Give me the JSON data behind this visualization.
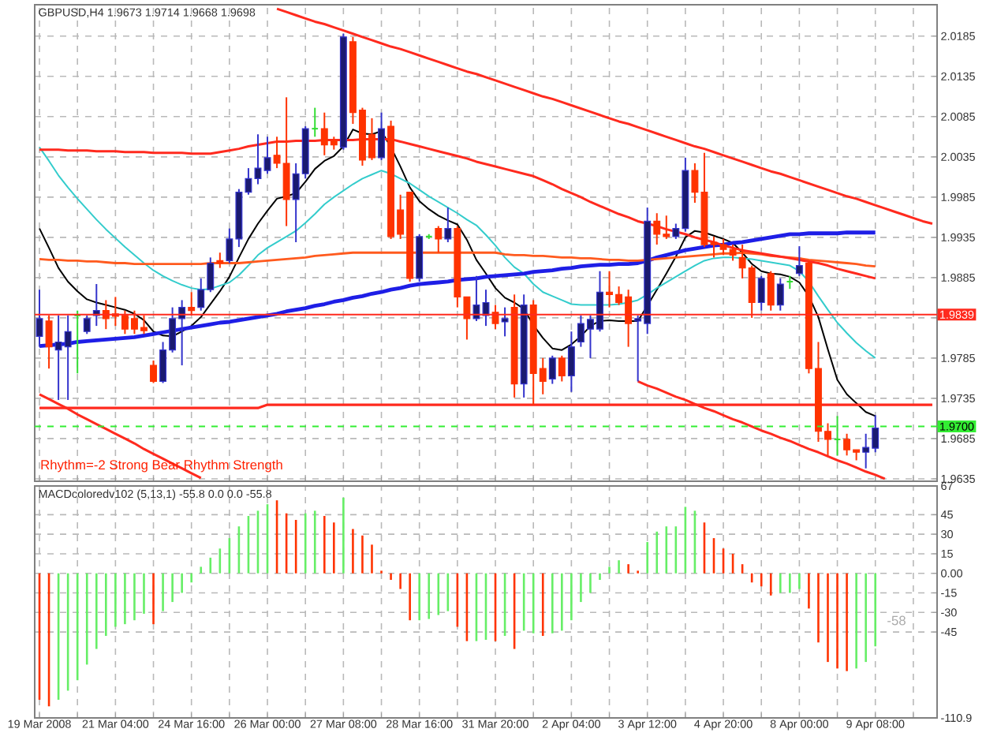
{
  "chart_data": [
    {
      "type": "candlestick",
      "title": "GBPUSD,H4  1.9673 1.9714 1.9668 1.9698",
      "categories": [
        null,
        null,
        null,
        null,
        null,
        null,
        null,
        null,
        null,
        null,
        null,
        null,
        null,
        null,
        null,
        null,
        null,
        null,
        null,
        null,
        null,
        null,
        null,
        null,
        null,
        null,
        null,
        null,
        null,
        null,
        null,
        null,
        null,
        null,
        null,
        null,
        null,
        null,
        null,
        null,
        null,
        null,
        null,
        null,
        null,
        null,
        null,
        null,
        null,
        null,
        null,
        null,
        null,
        null,
        null,
        null,
        null,
        null,
        null,
        null,
        null,
        null,
        null,
        null,
        null,
        null,
        null,
        null,
        null,
        null,
        null,
        null,
        null,
        null,
        null,
        null,
        null,
        null,
        null,
        null,
        null,
        null,
        null,
        null,
        null,
        null,
        null,
        null,
        null,
        null,
        null,
        null,
        null,
        null,
        null
      ],
      "ohlc": [
        [
          1.9812,
          1.987,
          1.9799,
          1.9834
        ],
        [
          1.9831,
          1.9838,
          1.9772,
          1.9799
        ],
        [
          1.9795,
          1.9838,
          1.9733,
          1.9805
        ],
        [
          1.9799,
          1.9838,
          1.9733,
          1.9818
        ],
        [
          1.9838,
          1.9844,
          1.9766,
          1.9838
        ],
        [
          1.9818,
          1.9838,
          1.9815,
          1.9834
        ],
        [
          1.9838,
          1.9877,
          1.9825,
          1.9844
        ],
        [
          1.9844,
          1.9857,
          1.9821,
          1.9834
        ],
        [
          1.984,
          1.9861,
          1.9825,
          1.9837
        ],
        [
          1.9838,
          1.9844,
          1.9815,
          1.9821
        ],
        [
          1.9834,
          1.9844,
          1.9815,
          1.9821
        ],
        [
          1.9823,
          1.9838,
          1.9815,
          1.9819
        ],
        [
          1.9776,
          1.9782,
          1.9754,
          1.9756
        ],
        [
          1.9756,
          1.9805,
          1.9754,
          1.9795
        ],
        [
          1.9795,
          1.9848,
          1.9792,
          1.9834
        ],
        [
          1.9834,
          1.9857,
          1.9776,
          1.9848
        ],
        [
          1.9848,
          1.9867,
          1.9838,
          1.9844
        ],
        [
          1.9848,
          1.9884,
          1.9844,
          1.987
        ],
        [
          1.987,
          1.991,
          1.9867,
          1.9903
        ],
        [
          1.9906,
          1.9916,
          1.9897,
          1.9903
        ],
        [
          1.9906,
          1.9946,
          1.9903,
          1.9933
        ],
        [
          1.9933,
          1.9995,
          1.9923,
          1.9991
        ],
        [
          1.9991,
          2.0021,
          1.9988,
          2.0008
        ],
        [
          2.0008,
          2.0063,
          2.0001,
          2.0021
        ],
        [
          2.0018,
          2.006,
          2.0014,
          2.0034
        ],
        [
          2.0037,
          2.006,
          2.0021,
          2.0027
        ],
        [
          2.0027,
          2.0109,
          1.9949,
          1.9982
        ],
        [
          1.9982,
          2.0027,
          1.9929,
          2.0014
        ],
        [
          2.0014,
          2.0073,
          2.0008,
          2.007
        ],
        [
          2.007,
          2.0096,
          2.006,
          2.007
        ],
        [
          2.007,
          2.009,
          2.0037,
          2.005
        ],
        [
          2.0055,
          2.006,
          2.0044,
          2.005
        ],
        [
          2.0047,
          2.0188,
          2.0044,
          2.0184
        ],
        [
          2.0178,
          2.0184,
          2.0076,
          2.009
        ],
        [
          2.0093,
          2.0096,
          2.0024,
          2.0031
        ],
        [
          2.0063,
          2.0083,
          2.0031,
          2.0034
        ],
        [
          2.0034,
          2.009,
          2.0031,
          2.007
        ],
        [
          2.0073,
          2.008,
          1.9933,
          1.9936
        ],
        [
          1.9969,
          1.9988,
          1.9933,
          1.9939
        ],
        [
          1.9991,
          1.9991,
          1.988,
          1.9884
        ],
        [
          1.9884,
          1.9939,
          1.988,
          1.9936
        ],
        [
          1.9936,
          1.9939,
          1.9933,
          1.9936
        ],
        [
          1.9946,
          1.9949,
          1.9916,
          1.9933
        ],
        [
          1.9933,
          1.9972,
          1.9929,
          1.9946
        ],
        [
          1.9946,
          1.9949,
          1.9848,
          1.9861
        ],
        [
          1.9861,
          1.9861,
          1.9808,
          1.9834
        ],
        [
          1.9834,
          1.9887,
          1.9831,
          1.9851
        ],
        [
          1.9838,
          1.987,
          1.9825,
          1.9854
        ],
        [
          1.9842,
          1.9851,
          1.9821,
          1.9828
        ],
        [
          1.983,
          1.9848,
          1.9812,
          1.9834
        ],
        [
          1.9848,
          1.9864,
          1.9736,
          1.9753
        ],
        [
          1.9753,
          1.9864,
          1.9736,
          1.9851
        ],
        [
          1.9851,
          1.9857,
          1.9727,
          1.9766
        ],
        [
          1.9772,
          1.9785,
          1.974,
          1.9756
        ],
        [
          1.9759,
          1.9788,
          1.9753,
          1.9785
        ],
        [
          1.9785,
          1.9788,
          1.9756,
          1.9763
        ],
        [
          1.9763,
          1.9818,
          1.9743,
          1.9799
        ],
        [
          1.9805,
          1.9838,
          1.9799,
          1.9828
        ],
        [
          1.9821,
          1.9838,
          1.9785,
          1.9833
        ],
        [
          1.9821,
          1.9893,
          1.9818,
          1.9867
        ],
        [
          1.9867,
          1.9893,
          1.9848,
          1.9864
        ],
        [
          1.9864,
          1.9874,
          1.9851,
          1.9854
        ],
        [
          1.9861,
          1.987,
          1.9799,
          1.9828
        ],
        [
          1.9831,
          1.9838,
          1.9756,
          1.9834
        ],
        [
          1.9828,
          1.9972,
          1.9815,
          1.9955
        ],
        [
          1.9955,
          1.9965,
          1.9926,
          1.9939
        ],
        [
          1.9939,
          1.9962,
          1.9933,
          1.9936
        ],
        [
          1.9936,
          1.9952,
          1.9933,
          1.9946
        ],
        [
          1.9946,
          2.0034,
          1.9942,
          2.0018
        ],
        [
          2.0018,
          2.0027,
          1.9978,
          1.9991
        ],
        [
          1.9991,
          2.004,
          1.9923,
          1.9926
        ],
        [
          1.9929,
          1.9936,
          1.991,
          1.9926
        ],
        [
          1.9926,
          1.9933,
          1.9913,
          1.992
        ],
        [
          1.992,
          1.9926,
          1.9906,
          1.9913
        ],
        [
          1.991,
          1.9926,
          1.9884,
          1.9897
        ],
        [
          1.9897,
          1.99,
          1.9835,
          1.9854
        ],
        [
          1.9854,
          1.9887,
          1.9844,
          1.9884
        ],
        [
          1.989,
          1.9893,
          1.9844,
          1.9851
        ],
        [
          1.9851,
          1.9884,
          1.9844,
          1.9877
        ],
        [
          1.988,
          1.9887,
          1.9871,
          1.988
        ],
        [
          1.989,
          1.9924,
          1.9887,
          1.99
        ],
        [
          1.9903,
          1.9906,
          1.9766,
          1.9772
        ],
        [
          1.9772,
          1.9805,
          1.9681,
          1.9694
        ],
        [
          1.9694,
          1.9704,
          1.9664,
          1.9684
        ],
        [
          1.9684,
          1.9713,
          1.9664,
          1.9684
        ],
        [
          1.9684,
          1.9691,
          1.9664,
          1.9671
        ],
        [
          1.9671,
          1.9671,
          1.9658,
          1.9668
        ],
        [
          1.9668,
          1.9691,
          1.9648,
          1.9674
        ],
        [
          1.9673,
          1.9714,
          1.9668,
          1.9698
        ],
        null,
        null,
        null,
        null,
        null,
        null
      ],
      "series": [
        {
          "type": "line",
          "color": "#000000",
          "values": [
            1.9946,
            1.9922,
            1.9897,
            1.988,
            1.9868,
            1.9858,
            1.9854,
            1.9851,
            1.9848,
            1.9845,
            1.984,
            1.9832,
            1.9818,
            1.9813,
            1.9812,
            1.9818,
            1.9825,
            1.9836,
            1.9852,
            1.9868,
            1.9886,
            1.991,
            1.9933,
            1.9952,
            1.9968,
            1.9983,
            1.9986,
            1.999,
            2.0004,
            2.002,
            2.003,
            2.0036,
            2.0048,
            2.0069,
            2.0064,
            2.0063,
            2.0067,
            2.0047,
            2.0023,
            1.9997,
            1.998,
            1.997,
            1.9962,
            1.9956,
            1.9951,
            1.9932,
            1.9907,
            1.989,
            1.9872,
            1.986,
            1.9854,
            1.9846,
            1.9826,
            1.981,
            1.9797,
            1.9795,
            1.9802,
            1.9812,
            1.9825,
            1.9831,
            1.9832,
            1.9831,
            1.9831,
            1.9831,
            1.985,
            1.987,
            1.989,
            1.9911,
            1.9935,
            1.9943,
            1.9941,
            1.9937,
            1.9933,
            1.9928,
            1.9916,
            1.9902,
            1.9893,
            1.989,
            1.9889,
            1.9886,
            1.9879,
            1.9862,
            1.9836,
            1.9796,
            1.9758,
            1.974,
            1.9729,
            1.9718,
            1.9713,
            null,
            null,
            null,
            null,
            null,
            null
          ]
        },
        {
          "type": "line",
          "color": "#33cccc",
          "values": [
            2.0047,
            2.003,
            2.0012,
            1.9997,
            1.9983,
            1.997,
            1.9957,
            1.9945,
            1.9934,
            1.9923,
            1.9913,
            1.9903,
            1.9894,
            1.9887,
            1.9881,
            1.9876,
            1.9872,
            1.987,
            1.9871,
            1.9875,
            1.9879,
            1.9888,
            1.99,
            1.9913,
            1.9922,
            1.9929,
            1.9936,
            1.9943,
            1.9953,
            1.9964,
            1.9976,
            1.9985,
            1.9993,
            2.0001,
            2.0008,
            2.0013,
            2.0018,
            2.0014,
            2.0008,
            2.0002,
            1.9994,
            1.9986,
            1.9979,
            1.9972,
            1.9965,
            1.9957,
            1.995,
            1.9938,
            1.9925,
            1.991,
            1.9898,
            1.989,
            1.9877,
            1.9867,
            1.9862,
            1.9857,
            1.9852,
            1.9851,
            1.9851,
            1.9851,
            1.9851,
            1.9852,
            1.9854,
            1.9857,
            1.9864,
            1.9872,
            1.9879,
            1.9886,
            1.9893,
            1.99,
            1.9906,
            1.9909,
            1.991,
            1.991,
            1.9909,
            1.9908,
            1.9906,
            1.9904,
            1.9902,
            1.99,
            1.9893,
            1.988,
            1.9862,
            1.9845,
            1.9829,
            1.9816,
            1.9804,
            1.9794,
            1.9785,
            null,
            null,
            null,
            null,
            null,
            null
          ]
        },
        {
          "type": "line",
          "color": "#1e1ee6",
          "values": [
            1.98,
            1.9801,
            1.9802,
            1.9803,
            1.9805,
            1.9806,
            1.9807,
            1.9808,
            1.9809,
            1.981,
            1.9811,
            1.9813,
            1.9815,
            1.9817,
            1.9819,
            1.9821,
            1.9823,
            1.9825,
            1.9827,
            1.9829,
            1.983,
            1.9832,
            1.9834,
            1.9836,
            1.9838,
            1.984,
            1.9843,
            1.9845,
            1.9847,
            1.985,
            1.9852,
            1.9855,
            1.9857,
            1.986,
            1.9862,
            1.9865,
            1.9867,
            1.987,
            1.9872,
            1.9875,
            1.9877,
            1.9878,
            1.9879,
            1.988,
            1.9882,
            1.9883,
            1.9884,
            1.9886,
            1.9887,
            1.9888,
            1.9889,
            1.989,
            1.9892,
            1.9893,
            1.9894,
            1.9896,
            1.9897,
            1.9899,
            1.99,
            1.9901,
            1.9901,
            1.9902,
            1.9902,
            1.9903,
            1.9906,
            1.991,
            1.9913,
            1.9916,
            1.9919,
            1.9921,
            1.9923,
            1.9925,
            1.9926,
            1.9928,
            1.9929,
            1.9931,
            1.9933,
            1.9935,
            1.9937,
            1.9939,
            1.9939,
            1.994,
            1.994,
            1.994,
            1.994,
            1.9941,
            1.9941,
            1.9941,
            1.9941,
            null,
            null,
            null,
            null,
            null,
            null
          ]
        },
        {
          "type": "line",
          "color": "#ff5a1e",
          "values": [
            1.9908,
            1.9907,
            1.9907,
            1.9906,
            1.9906,
            1.9905,
            1.9905,
            1.9904,
            1.9903,
            1.9903,
            1.9902,
            1.9902,
            1.9902,
            1.9902,
            1.9902,
            1.9902,
            1.9902,
            1.9902,
            1.9903,
            1.9903,
            1.9903,
            1.9903,
            1.9904,
            1.9905,
            1.9906,
            1.9907,
            1.9908,
            1.9909,
            1.991,
            1.9912,
            1.9913,
            1.9914,
            1.9915,
            1.9916,
            1.9916,
            1.9916,
            1.9916,
            1.9916,
            1.9916,
            1.9916,
            1.9916,
            1.9916,
            1.9916,
            1.9916,
            1.9916,
            1.9916,
            1.9916,
            1.9916,
            1.9916,
            1.9914,
            1.9913,
            1.9913,
            1.9912,
            1.9912,
            1.9911,
            1.991,
            1.991,
            1.9909,
            1.9909,
            1.9908,
            1.9907,
            1.9907,
            1.9906,
            1.9906,
            1.9907,
            1.9908,
            1.9909,
            1.991,
            1.9911,
            1.9912,
            1.9913,
            1.9914,
            1.9915,
            1.9915,
            1.9916,
            1.9915,
            1.9914,
            1.9912,
            1.9911,
            1.991,
            1.9909,
            1.9907,
            1.9906,
            1.9905,
            1.9904,
            1.9903,
            1.9902,
            1.99,
            1.9899,
            null,
            null,
            null,
            null,
            null,
            null
          ]
        },
        {
          "type": "line",
          "color": "#ff2a1e",
          "values": [
            2.0044,
            2.0044,
            2.0044,
            2.0043,
            2.0043,
            2.0043,
            2.0042,
            2.0042,
            2.0042,
            2.0041,
            2.0041,
            2.0041,
            2.004,
            2.004,
            2.004,
            2.004,
            2.0039,
            2.0039,
            2.0039,
            2.0041,
            2.0043,
            2.0045,
            2.0048,
            2.005,
            2.0052,
            2.0054,
            2.0054,
            2.0055,
            2.0055,
            2.0055,
            2.0056,
            2.0056,
            2.0056,
            2.0056,
            2.0057,
            2.0057,
            2.0057,
            2.0057,
            2.0054,
            2.0051,
            2.0048,
            2.0045,
            2.0042,
            2.0039,
            2.0036,
            2.0033,
            2.0029,
            2.0026,
            2.0023,
            2.002,
            2.0017,
            2.0014,
            2.0011,
            2.0006,
            2.0001,
            1.9995,
            1.999,
            1.9985,
            1.9979,
            1.9974,
            1.9969,
            1.9964,
            1.996,
            1.9955,
            1.9952,
            1.9949,
            1.9945,
            1.9942,
            1.9939,
            1.9935,
            1.9932,
            1.9929,
            1.9925,
            1.9922,
            1.9919,
            1.9917,
            1.9915,
            1.9913,
            1.9911,
            1.9909,
            1.9907,
            1.9905,
            1.9903,
            1.99,
            1.9896,
            1.9893,
            1.989,
            1.9887,
            1.9884,
            null,
            null,
            null,
            null,
            null,
            null
          ]
        },
        {
          "type": "line",
          "color": "#ff2a1e",
          "values": [
            1.9723,
            1.9723,
            1.9723,
            1.9723,
            1.9723,
            1.9723,
            1.9723,
            1.9723,
            1.9723,
            1.9723,
            1.9723,
            1.9723,
            1.9723,
            1.9723,
            1.9723,
            1.9723,
            1.9723,
            1.9723,
            1.9723,
            1.9723,
            1.9723,
            1.9723,
            1.9723,
            1.9723,
            1.9727,
            1.9727,
            1.9727,
            1.9727,
            1.9727,
            1.9727,
            1.9727,
            1.9727,
            1.9727,
            1.9727,
            1.9727,
            1.9727,
            1.9727,
            1.9727,
            1.9727,
            1.9727,
            1.9727,
            1.9727,
            1.9727,
            1.9727,
            1.9727,
            1.9727,
            1.9727,
            1.9727,
            1.9727,
            1.9727,
            1.9727,
            1.9727,
            1.9727,
            1.9727,
            1.9727,
            1.9727,
            1.9727,
            1.9727,
            1.9727,
            1.9727,
            1.9727,
            1.9727,
            1.9727,
            1.9727,
            1.9727,
            1.9727,
            1.9727,
            1.9727,
            1.9727,
            1.9727,
            1.9727,
            1.9727,
            1.9727,
            1.9727,
            1.9727,
            1.9727,
            1.9727,
            1.9727,
            1.9727,
            1.9727,
            1.9727,
            1.9727,
            1.9727,
            1.9727,
            1.9727,
            1.9727,
            1.9727,
            1.9727,
            1.9727,
            1.9727,
            1.9727,
            1.9727,
            1.9727,
            1.9727,
            1.9727
          ]
        },
        {
          "type": "line",
          "color": "#ff2a1e",
          "values": [
            null,
            null,
            null,
            null,
            null,
            null,
            null,
            null,
            null,
            null,
            null,
            null,
            null,
            null,
            null,
            null,
            null,
            null,
            null,
            null,
            null,
            null,
            null,
            null,
            null,
            2.0219,
            2.0215,
            2.0211,
            2.0207,
            2.0203,
            2.02,
            2.0196,
            2.0192,
            2.0188,
            2.0184,
            2.018,
            2.0176,
            2.0172,
            2.0169,
            2.0165,
            2.0161,
            2.0157,
            2.0153,
            2.0149,
            2.0145,
            2.0141,
            2.0138,
            2.0134,
            2.013,
            2.0126,
            2.0122,
            2.0118,
            2.0114,
            2.011,
            2.0107,
            2.0103,
            2.0099,
            2.0095,
            2.0091,
            2.0087,
            2.0083,
            2.0079,
            2.0076,
            2.0072,
            2.0068,
            2.0064,
            2.006,
            2.0056,
            2.0052,
            2.0048,
            2.0045,
            2.0041,
            2.0037,
            2.0033,
            2.0029,
            2.0025,
            2.0021,
            2.0017,
            2.0014,
            2.001,
            2.0006,
            2.0002,
            1.9998,
            1.9994,
            1.999,
            1.9986,
            1.9983,
            1.9979,
            1.9975,
            1.9971,
            1.9967,
            1.9963,
            1.9959,
            1.9955,
            1.9952
          ]
        },
        {
          "type": "line",
          "color": "#ff2a1e",
          "values": [
            1.974,
            1.9734,
            1.9728,
            1.9722,
            1.9715,
            1.9709,
            1.9703,
            1.9697,
            1.9691,
            1.9685,
            1.9679,
            1.9672,
            1.9666,
            1.966,
            1.9654,
            1.9648,
            1.9642,
            1.9636,
            null,
            null,
            null,
            null,
            null,
            null,
            null,
            null,
            null,
            null,
            null,
            null,
            null,
            null,
            null,
            null,
            null,
            null,
            null,
            null,
            null,
            null,
            null,
            null,
            null,
            null,
            null,
            null,
            null,
            null,
            null,
            null,
            null,
            null,
            null,
            null,
            null,
            null,
            null,
            null,
            null,
            null,
            null,
            null,
            null,
            null,
            null,
            null,
            null,
            null,
            null,
            null,
            null,
            null,
            null,
            null,
            null,
            null,
            null,
            null,
            null,
            null,
            null,
            null,
            null,
            null,
            null,
            null,
            null,
            null,
            null,
            null,
            null,
            null,
            null,
            null,
            null
          ]
        },
        {
          "type": "line",
          "color": "#ff2a1e",
          "values": [
            null,
            null,
            null,
            null,
            null,
            null,
            null,
            null,
            null,
            null,
            null,
            null,
            null,
            null,
            null,
            null,
            null,
            null,
            null,
            null,
            null,
            null,
            null,
            null,
            null,
            null,
            null,
            null,
            null,
            null,
            null,
            null,
            null,
            null,
            null,
            null,
            null,
            null,
            null,
            null,
            null,
            null,
            null,
            null,
            null,
            null,
            null,
            null,
            null,
            null,
            null,
            null,
            null,
            null,
            null,
            null,
            null,
            null,
            null,
            null,
            null,
            null,
            null,
            1.9756,
            1.9751,
            1.9747,
            1.9742,
            1.9737,
            1.9733,
            1.9728,
            1.9723,
            1.9719,
            1.9714,
            1.9709,
            1.9705,
            1.97,
            1.9695,
            1.9691,
            1.9686,
            1.9682,
            1.9677,
            1.9672,
            1.9668,
            1.9663,
            1.9658,
            1.9654,
            1.9649,
            1.9644,
            1.964,
            1.9635,
            null,
            null,
            null,
            null,
            null
          ]
        }
      ],
      "ref_lines": [
        {
          "axis": "y",
          "value": 1.9839,
          "label": "1.9839",
          "color": "#ff2a1e"
        },
        {
          "axis": "y",
          "value": 1.97,
          "label": "1.9700",
          "color": "#33ee33",
          "line_style": "dashed"
        }
      ],
      "annotations": [
        "Rhythm=-2 Strong Bear Rhythm Strength"
      ],
      "ylim": [
        1.9632,
        2.0224
      ],
      "yticks": [
        1.9635,
        1.9685,
        1.9735,
        1.9785,
        {
          "value": 1.9835,
          "label": null
        },
        1.9885,
        1.9935,
        1.9985,
        2.0035,
        2.0085,
        2.0135,
        2.0185
      ],
      "tick_labels": "y",
      "grid": true
    },
    {
      "type": "bar",
      "title": "MACDcoloredv102 (5,13,1) -55.8 0.0 0.0 -55.8",
      "categories": [
        "19 Mar 2008",
        null,
        null,
        null,
        null,
        null,
        null,
        null,
        "21 Mar 04:00",
        null,
        null,
        null,
        null,
        null,
        null,
        null,
        "24 Mar 16:00",
        null,
        null,
        null,
        null,
        null,
        null,
        null,
        "26 Mar 00:00",
        null,
        null,
        null,
        null,
        null,
        null,
        null,
        "27 Mar 08:00",
        null,
        null,
        null,
        null,
        null,
        null,
        null,
        "28 Mar 16:00",
        null,
        null,
        null,
        null,
        null,
        null,
        null,
        "31 Mar 20:00",
        null,
        null,
        null,
        null,
        null,
        null,
        null,
        "2 Apr 04:00",
        null,
        null,
        null,
        null,
        null,
        null,
        null,
        "3 Apr 12:00",
        null,
        null,
        null,
        null,
        null,
        null,
        null,
        "4 Apr 20:00",
        null,
        null,
        null,
        null,
        null,
        null,
        null,
        "8 Apr 00:00",
        null,
        null,
        null,
        null,
        null,
        null,
        null,
        "9 Apr 08:00",
        null,
        null,
        null,
        null,
        null,
        null
      ],
      "values": [
        -97,
        -102,
        -97,
        -90,
        -82,
        -70,
        -58,
        -48,
        -41,
        -39,
        -36,
        -31,
        -39,
        -29,
        -22,
        -15,
        -7,
        5,
        12,
        19,
        27,
        36,
        44,
        48,
        53,
        56,
        46,
        41,
        46,
        48,
        44,
        39,
        58,
        34,
        29,
        22,
        2,
        -5,
        -12,
        -36,
        -36,
        -35,
        -32,
        -29,
        -41,
        -52,
        -52,
        -51,
        -52,
        -48,
        -58,
        -44,
        -46,
        -48,
        -46,
        -44,
        -36,
        -22,
        -15,
        -5,
        5,
        10,
        7,
        2,
        24,
        32,
        36,
        36,
        51,
        48,
        39,
        27,
        19,
        15,
        7,
        -7,
        -10,
        -17,
        -15,
        -15,
        -12,
        -27,
        -53,
        -68,
        -73,
        -75,
        -73,
        -68,
        -56,
        null,
        null,
        null,
        null,
        null,
        null
      ],
      "colors": [
        "#ff3300",
        "#ff3300",
        "#66ee66",
        "#66ee66",
        "#66ee66",
        "#66ee66",
        "#66ee66",
        "#66ee66",
        "#66ee66",
        "#66ee66",
        "#66ee66",
        "#66ee66",
        "#ff3300",
        "#66ee66",
        "#66ee66",
        "#66ee66",
        "#66ee66",
        "#66ee66",
        "#66ee66",
        "#66ee66",
        "#66ee66",
        "#66ee66",
        "#66ee66",
        "#66ee66",
        "#66ee66",
        "#ff3300",
        "#ff3300",
        "#ff3300",
        "#66ee66",
        "#66ee66",
        "#ff3300",
        "#ff3300",
        "#66ee66",
        "#ff3300",
        "#ff3300",
        "#ff3300",
        "#ff3300",
        "#ff3300",
        "#ff3300",
        "#ff3300",
        "#66ee66",
        "#66ee66",
        "#66ee66",
        "#66ee66",
        "#ff3300",
        "#ff3300",
        "#66ee66",
        "#66ee66",
        "#ff3300",
        "#66ee66",
        "#ff3300",
        "#66ee66",
        "#66ee66",
        "#ff3300",
        "#66ee66",
        "#66ee66",
        "#66ee66",
        "#66ee66",
        "#66ee66",
        "#66ee66",
        "#66ee66",
        "#66ee66",
        "#ff3300",
        "#ff3300",
        "#66ee66",
        "#66ee66",
        "#66ee66",
        "#66ee66",
        "#66ee66",
        "#66ee66",
        "#ff3300",
        "#ff3300",
        "#ff3300",
        "#ff3300",
        "#ff3300",
        "#ff3300",
        "#ff3300",
        "#ff3300",
        "#66ee66",
        "#66ee66",
        "#66ee66",
        "#ff3300",
        "#ff3300",
        "#ff3300",
        "#ff3300",
        "#ff3300",
        "#66ee66",
        "#66ee66",
        "#66ee66",
        null,
        null,
        null,
        null,
        null,
        null
      ],
      "annotations": [
        "-58"
      ],
      "ylim": [
        -110.9,
        67
      ],
      "yticks": [
        -110.9,
        -45,
        -30,
        -15,
        {
          "value": 0,
          "label": "0.00"
        },
        15,
        30,
        45,
        67
      ],
      "grid": true
    }
  ]
}
